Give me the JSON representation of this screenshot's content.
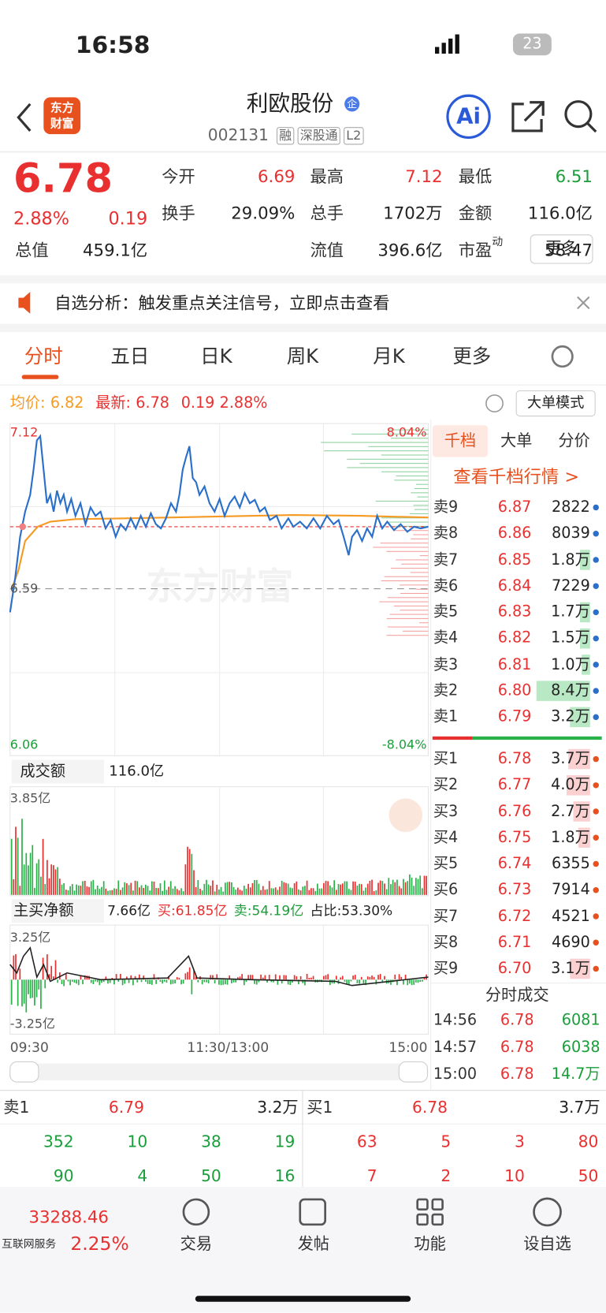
{
  "status": {
    "time": "16:58",
    "battery": "23"
  },
  "header": {
    "title": "利欧股份",
    "badge": "企",
    "code": "002131",
    "tags": [
      "融",
      "深股通",
      "L2"
    ],
    "logo": [
      "东方",
      "财富"
    ],
    "ai": "Ai"
  },
  "quote": {
    "price": "6.78",
    "percent": "2.88%",
    "change": "0.19",
    "fields": [
      {
        "label": "今开",
        "value": "6.69"
      },
      {
        "label": "最高",
        "value": "7.12"
      },
      {
        "label": "最低",
        "value": "6.51"
      },
      {
        "label": "换手",
        "value": "29.09%"
      },
      {
        "label": "总手",
        "value": "1702万"
      },
      {
        "label": "金额",
        "value": "116.0亿"
      },
      {
        "label": "总值",
        "value": "459.1亿"
      },
      {
        "label": "流值",
        "value": "396.6亿"
      },
      {
        "label": "市盈",
        "sup": "动",
        "value": "58.47"
      }
    ],
    "more": "更多"
  },
  "notice": "自选分析：触发重点关注信号，立即点击查看",
  "tabs": [
    "分时",
    "五日",
    "日K",
    "周K",
    "月K",
    "更多"
  ],
  "chart": {
    "avg_label": "均价:",
    "avg": "6.82",
    "latest_label": "最新:",
    "latest": "6.78",
    "change": "0.19",
    "percent": "2.88%",
    "mode": "大单模式",
    "high": "7.12",
    "high_pct": "8.04%",
    "base": "6.59",
    "low": "6.06",
    "low_pct": "-8.04%",
    "watermark": "东方财富",
    "volume": {
      "selector": "成交额",
      "value": "116.0亿",
      "max": "3.85亿"
    },
    "net": {
      "selector": "主买净额",
      "value": "7.66亿",
      "buy": "买:61.85亿",
      "sell": "卖:54.19亿",
      "ratio": "占比:53.30%",
      "max": "3.25亿",
      "min": "-3.25亿"
    },
    "times": [
      "09:30",
      "11:30/13:00",
      "15:00"
    ]
  },
  "panel": {
    "tabs": [
      "千档",
      "大单",
      "分价"
    ],
    "link": "查看千档行情 >",
    "asks": [
      {
        "label": "卖9",
        "price": "6.87",
        "volume": "2822"
      },
      {
        "label": "卖8",
        "price": "6.86",
        "volume": "8039"
      },
      {
        "label": "卖7",
        "price": "6.85",
        "volume": "1.8万"
      },
      {
        "label": "卖6",
        "price": "6.84",
        "volume": "7229"
      },
      {
        "label": "卖5",
        "price": "6.83",
        "volume": "1.7万"
      },
      {
        "label": "卖4",
        "price": "6.82",
        "volume": "1.5万"
      },
      {
        "label": "卖3",
        "price": "6.81",
        "volume": "1.0万"
      },
      {
        "label": "卖2",
        "price": "6.80",
        "volume": "8.4万"
      },
      {
        "label": "卖1",
        "price": "6.79",
        "volume": "3.2万"
      }
    ],
    "bids": [
      {
        "label": "买1",
        "price": "6.78",
        "volume": "3.7万"
      },
      {
        "label": "买2",
        "price": "6.77",
        "volume": "4.0万"
      },
      {
        "label": "买3",
        "price": "6.76",
        "volume": "2.7万"
      },
      {
        "label": "买4",
        "price": "6.75",
        "volume": "1.8万"
      },
      {
        "label": "买5",
        "price": "6.74",
        "volume": "6355"
      },
      {
        "label": "买6",
        "price": "6.73",
        "volume": "7914"
      },
      {
        "label": "买7",
        "price": "6.72",
        "volume": "4521"
      },
      {
        "label": "买8",
        "price": "6.71",
        "volume": "4690"
      },
      {
        "label": "买9",
        "price": "6.70",
        "volume": "3.1万"
      }
    ],
    "trades_title": "分时成交",
    "trades": [
      {
        "time": "14:56",
        "price": "6.78",
        "volume": "6081"
      },
      {
        "time": "14:57",
        "price": "6.78",
        "volume": "6038"
      },
      {
        "time": "15:00",
        "price": "6.78",
        "volume": "14.7万"
      }
    ]
  },
  "book": {
    "sell": {
      "label": "卖1",
      "price": "6.79",
      "volume": "3.2万",
      "rows": [
        [
          "352",
          "10",
          "38",
          "19"
        ],
        [
          "90",
          "4",
          "50",
          "16"
        ]
      ]
    },
    "buy": {
      "label": "买1",
      "price": "6.78",
      "volume": "3.7万",
      "rows": [
        [
          "63",
          "5",
          "3",
          "80"
        ],
        [
          "7",
          "2",
          "10",
          "50"
        ]
      ]
    }
  },
  "footer": {
    "index": "33288.46",
    "sector": "互联网服务",
    "percent": "2.25%",
    "nav": [
      "交易",
      "发帖",
      "功能",
      "设自选"
    ]
  }
}
